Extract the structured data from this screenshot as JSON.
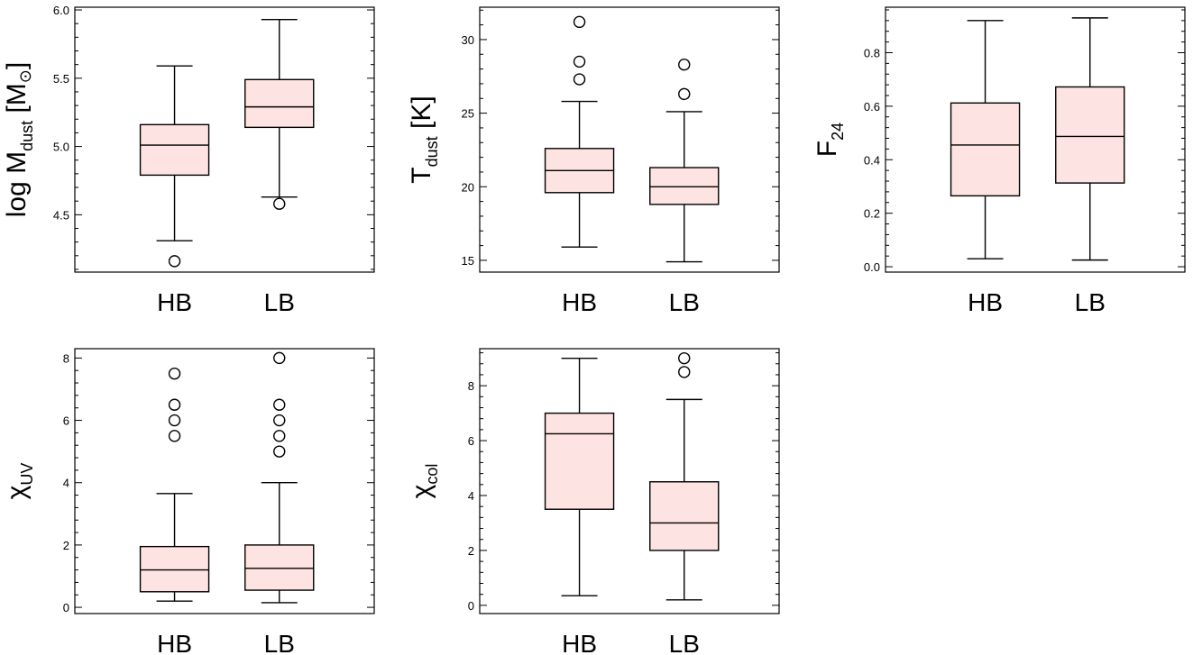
{
  "style": {
    "box_fill": "#fde3e1",
    "line_color": "#000000",
    "background": "#ffffff"
  },
  "chart_data": [
    {
      "type": "box",
      "ylabel": {
        "main": "log M",
        "sub": "dust",
        "unit": " [M",
        "unit_symbol": "⊙",
        "unit_end": "]"
      },
      "ylim": [
        4.08,
        6.02
      ],
      "yticks": [
        4.5,
        5.0,
        5.5,
        6.0
      ],
      "ytick_labels": [
        "4.5",
        "5.0",
        "5.5",
        "6.0"
      ],
      "categories": [
        "HB",
        "LB"
      ],
      "boxes": [
        {
          "category": "HB",
          "whisker_low": 4.31,
          "q1": 4.79,
          "median": 5.01,
          "q3": 5.16,
          "whisker_high": 5.59,
          "outliers": [
            4.16
          ]
        },
        {
          "category": "LB",
          "whisker_low": 4.63,
          "q1": 5.14,
          "median": 5.29,
          "q3": 5.49,
          "whisker_high": 5.93,
          "outliers": [
            4.58
          ]
        }
      ]
    },
    {
      "type": "box",
      "ylabel": {
        "main": "T",
        "sub": "dust",
        "unit": " [K]"
      },
      "ylim": [
        14.2,
        32.2
      ],
      "yticks": [
        15,
        20,
        25,
        30
      ],
      "ytick_labels": [
        "15",
        "20",
        "25",
        "30"
      ],
      "categories": [
        "HB",
        "LB"
      ],
      "boxes": [
        {
          "category": "HB",
          "whisker_low": 15.9,
          "q1": 19.6,
          "median": 21.1,
          "q3": 22.6,
          "whisker_high": 25.8,
          "outliers": [
            31.2,
            28.5,
            27.3
          ]
        },
        {
          "category": "LB",
          "whisker_low": 14.9,
          "q1": 18.8,
          "median": 20.0,
          "q3": 21.3,
          "whisker_high": 25.1,
          "outliers": [
            28.3,
            26.3
          ]
        }
      ]
    },
    {
      "type": "box",
      "ylabel": {
        "main": "F",
        "sub": "24",
        "unit": ""
      },
      "ylim": [
        -0.02,
        0.97
      ],
      "yticks": [
        0.0,
        0.2,
        0.4,
        0.6,
        0.8
      ],
      "ytick_labels": [
        "0.0",
        "0.2",
        "0.4",
        "0.6",
        "0.8"
      ],
      "categories": [
        "HB",
        "LB"
      ],
      "boxes": [
        {
          "category": "HB",
          "whisker_low": 0.03,
          "q1": 0.265,
          "median": 0.455,
          "q3": 0.612,
          "whisker_high": 0.92,
          "outliers": []
        },
        {
          "category": "LB",
          "whisker_low": 0.025,
          "q1": 0.313,
          "median": 0.487,
          "q3": 0.672,
          "whisker_high": 0.93,
          "outliers": []
        }
      ]
    },
    {
      "type": "box",
      "ylabel": {
        "main": "χ",
        "sub": "UV",
        "unit": ""
      },
      "ylim": [
        -0.2,
        8.3
      ],
      "yticks": [
        0,
        2,
        4,
        6,
        8
      ],
      "ytick_labels": [
        "0",
        "2",
        "4",
        "6",
        "8"
      ],
      "categories": [
        "HB",
        "LB"
      ],
      "boxes": [
        {
          "category": "HB",
          "whisker_low": 0.2,
          "q1": 0.5,
          "median": 1.2,
          "q3": 1.95,
          "whisker_high": 3.65,
          "outliers": [
            7.5,
            6.5,
            6.0,
            5.5
          ]
        },
        {
          "category": "LB",
          "whisker_low": 0.15,
          "q1": 0.55,
          "median": 1.25,
          "q3": 2.0,
          "whisker_high": 4.0,
          "outliers": [
            8.0,
            6.5,
            6.0,
            5.5,
            5.0
          ]
        }
      ]
    },
    {
      "type": "box",
      "ylabel": {
        "main": "χ",
        "sub": "col",
        "unit": ""
      },
      "ylim": [
        -0.3,
        9.35
      ],
      "yticks": [
        0,
        2,
        4,
        6,
        8
      ],
      "ytick_labels": [
        "0",
        "2",
        "4",
        "6",
        "8"
      ],
      "categories": [
        "HB",
        "LB"
      ],
      "boxes": [
        {
          "category": "HB",
          "whisker_low": 0.35,
          "q1": 3.5,
          "median": 6.25,
          "q3": 7.0,
          "whisker_high": 9.0,
          "outliers": []
        },
        {
          "category": "LB",
          "whisker_low": 0.2,
          "q1": 2.0,
          "median": 3.0,
          "q3": 4.5,
          "whisker_high": 7.5,
          "outliers": [
            9.0,
            8.5
          ]
        }
      ]
    }
  ]
}
